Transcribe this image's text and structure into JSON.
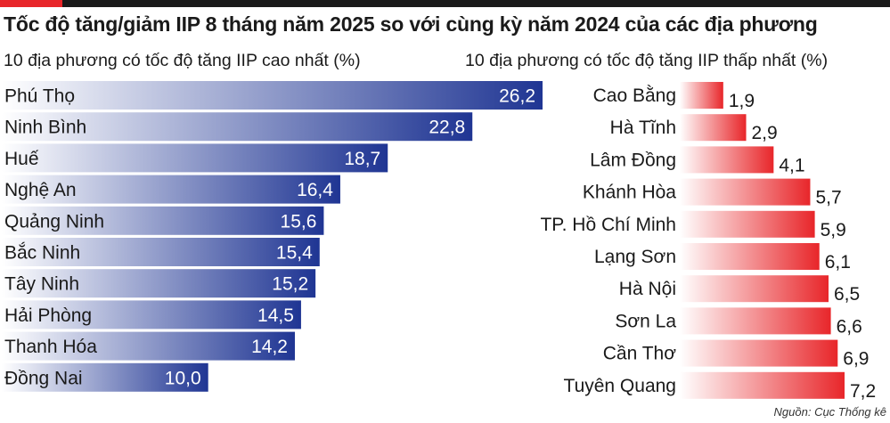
{
  "title": "Tốc độ tăng/giảm IIP 8 tháng năm 2025 so với cùng kỳ năm 2024 của các địa phương",
  "source": "Nguồn: Cục Thống kê",
  "colors": {
    "high_bar_dark": "#1f3593",
    "high_bar_light": "#ffffff",
    "low_bar_dark": "#e8262a",
    "low_bar_light": "#ffffff",
    "accent": "#e8262a"
  },
  "chart_data": [
    {
      "type": "bar",
      "orientation": "horizontal",
      "subtitle": "10 địa phương có tốc độ tăng IIP cao nhất (%)",
      "categories": [
        "Phú Thọ",
        "Ninh Bình",
        "Huế",
        "Nghệ An",
        "Quảng Ninh",
        "Bắc Ninh",
        "Tây Ninh",
        "Hải Phòng",
        "Thanh Hóa",
        "Đồng Nai"
      ],
      "values": [
        26.2,
        22.8,
        18.7,
        16.4,
        15.6,
        15.4,
        15.2,
        14.5,
        14.2,
        10.0
      ],
      "value_labels": [
        "26,2",
        "22,8",
        "18,7",
        "16,4",
        "15,6",
        "15,4",
        "15,2",
        "14,5",
        "14,2",
        "10,0"
      ],
      "label_position": "inside-end"
    },
    {
      "type": "bar",
      "orientation": "horizontal",
      "subtitle": "10 địa phương có tốc độ tăng IIP thấp nhất (%)",
      "categories": [
        "Cao Bằng",
        "Hà Tĩnh",
        "Lâm Đồng",
        "Khánh Hòa",
        "TP. Hồ Chí Minh",
        "Lạng Sơn",
        "Hà Nội",
        "Sơn La",
        "Cần Thơ",
        "Tuyên Quang"
      ],
      "values": [
        1.9,
        2.9,
        4.1,
        5.7,
        5.9,
        6.1,
        6.5,
        6.6,
        6.9,
        7.2
      ],
      "value_labels": [
        "1,9",
        "2,9",
        "4,1",
        "5,7",
        "5,9",
        "6,1",
        "6,5",
        "6,6",
        "6,9",
        "7,2"
      ],
      "label_position": "outside-end"
    }
  ]
}
